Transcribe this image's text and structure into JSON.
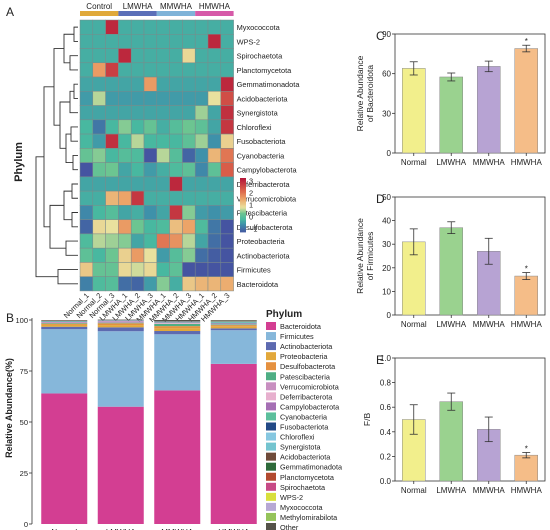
{
  "panels": {
    "A": {
      "letter": "A",
      "groups": [
        "Control",
        "LMWHA",
        "MMWHA",
        "HMWHA"
      ],
      "group_colors": [
        "#e0a93a",
        "#5b6fb8",
        "#7fb3d8",
        "#d65aa8"
      ],
      "rows_label": "Phylum",
      "rows": [
        "Myxococcota",
        "WPS-2",
        "Spirochaetota",
        "Planctomycetota",
        "Gemmatimonadota",
        "Acidobacteriota",
        "Synergistota",
        "Chloroflexi",
        "Fusobacteriota",
        "Cyanobacteria",
        "Campylobacterota",
        "Deferribacterota",
        "Verrucomicrobiota",
        "Patescibacteria",
        "Desulfobacterota",
        "Proteobacteria",
        "Actinobacteriota",
        "Firmicutes",
        "Bacteroidota"
      ],
      "samples": [
        "Normal_1",
        "Normal_2",
        "Normal_3",
        "LMWHA_1",
        "LMWHA_2",
        "LMWHA_3",
        "MMWHA_1",
        "MMWHA_2",
        "MMWHA_3",
        "HMWHA_1",
        "HMWHA_2",
        "HMWHA_3"
      ],
      "values": [
        [
          -0.3,
          -0.3,
          3.0,
          -0.3,
          -0.3,
          -0.3,
          -0.3,
          -0.3,
          -0.3,
          -0.3,
          -0.3,
          -0.3
        ],
        [
          -0.3,
          -0.3,
          -0.3,
          -0.3,
          -0.3,
          -0.3,
          -0.3,
          -0.3,
          -0.3,
          -0.3,
          3.0,
          -0.3
        ],
        [
          -0.3,
          -0.3,
          -0.3,
          3.0,
          -0.3,
          -0.3,
          -0.3,
          -0.3,
          0.9,
          -0.3,
          -0.3,
          -0.3
        ],
        [
          -0.3,
          1.6,
          2.7,
          -0.3,
          -0.3,
          -0.3,
          -0.3,
          -0.3,
          -0.3,
          -0.3,
          -0.3,
          -0.3
        ],
        [
          -0.4,
          -0.4,
          -0.4,
          -0.4,
          -0.4,
          1.6,
          -0.4,
          -0.4,
          -0.4,
          -0.4,
          -0.4,
          3.0
        ],
        [
          -0.5,
          0.6,
          -0.5,
          -0.5,
          -0.5,
          -0.5,
          -0.5,
          -0.5,
          -0.5,
          -0.5,
          0.8,
          2.5
        ],
        [
          -0.4,
          -0.4,
          -0.4,
          -0.4,
          -0.4,
          -0.4,
          -0.4,
          -0.4,
          -0.4,
          0.5,
          -0.4,
          2.9
        ],
        [
          -0.2,
          -0.9,
          -0.2,
          0.4,
          -0.2,
          0.2,
          -0.3,
          0.0,
          0.3,
          0.1,
          -0.4,
          2.8
        ],
        [
          -0.2,
          -0.5,
          2.9,
          -0.2,
          0.6,
          -0.2,
          -0.2,
          -0.2,
          0.1,
          0.5,
          -0.6,
          1.0
        ],
        [
          0.2,
          0.4,
          -0.2,
          0.0,
          -0.1,
          -1.6,
          0.6,
          0.0,
          -1.1,
          -0.6,
          1.3,
          2.0
        ],
        [
          -1.3,
          0.2,
          0.3,
          -0.4,
          -0.2,
          -0.5,
          -0.3,
          -0.1,
          0.1,
          -0.7,
          0.1,
          2.3
        ],
        [
          -0.4,
          -0.4,
          -0.4,
          -0.4,
          -0.4,
          -0.4,
          -0.4,
          3.0,
          -0.4,
          -0.4,
          -0.4,
          -0.4
        ],
        [
          -0.3,
          -0.3,
          1.3,
          1.5,
          2.8,
          -0.3,
          -0.3,
          -0.3,
          -0.3,
          -0.3,
          -0.3,
          -0.3
        ],
        [
          -0.7,
          -0.2,
          0.0,
          -0.4,
          -0.3,
          -0.6,
          -0.4,
          2.8,
          0.4,
          -0.5,
          -0.6,
          -0.5
        ],
        [
          -1.1,
          0.9,
          0.8,
          1.6,
          0.3,
          -0.2,
          -0.1,
          1.2,
          1.5,
          -0.1,
          -0.9,
          -1.3
        ],
        [
          -0.1,
          0.6,
          0.5,
          0.4,
          -0.4,
          -0.2,
          2.0,
          1.7,
          0.6,
          -0.4,
          -1.0,
          -1.4
        ],
        [
          0.1,
          -0.2,
          0.3,
          1.0,
          1.6,
          0.8,
          -0.5,
          0.0,
          0.4,
          -1.0,
          -1.2,
          -1.3
        ],
        [
          1.1,
          0.2,
          0.2,
          0.9,
          0.7,
          0.9,
          -0.2,
          0.1,
          -1.5,
          -1.5,
          -1.6,
          -1.6
        ],
        [
          -0.8,
          -0.1,
          0.0,
          -1.0,
          -1.1,
          -0.5,
          0.4,
          -0.3,
          1.1,
          1.3,
          1.3,
          1.4
        ]
      ],
      "color_scale": {
        "min": -1.3,
        "max": 3.2,
        "ticks": [
          3,
          2,
          1,
          0,
          -1
        ]
      }
    },
    "B": {
      "letter": "B",
      "ylabel": "Relative Abundance(%)",
      "yticks": [
        0,
        25,
        50,
        75,
        100
      ],
      "legend_title": "Phylum",
      "categories": [
        "Normal",
        "LMWHA",
        "MMWHA",
        "HMWHA"
      ],
      "series": [
        {
          "name": "Bacteroidota",
          "color": "#d33e92",
          "values": [
            64,
            57.5,
            65.5,
            78.5
          ]
        },
        {
          "name": "Firmicutes",
          "color": "#86b7da",
          "values": [
            31.5,
            37,
            27.5,
            16.5
          ]
        },
        {
          "name": "Actinobacteriota",
          "color": "#5d6ab0",
          "values": [
            1.2,
            1.9,
            1.6,
            0.9
          ]
        },
        {
          "name": "Proteobacteria",
          "color": "#e2a83b",
          "values": [
            0.9,
            1.1,
            1.3,
            1.0
          ]
        },
        {
          "name": "Desulfobacterota",
          "color": "#e5913f",
          "values": [
            0.6,
            0.9,
            1.1,
            0.6
          ]
        },
        {
          "name": "Patescibacteria",
          "color": "#4fae84",
          "values": [
            0.3,
            0.3,
            1.1,
            0.3
          ]
        },
        {
          "name": "Verrucomicrobiota",
          "color": "#c88fc0",
          "values": [
            0.2,
            0.5,
            0.1,
            0.1
          ]
        },
        {
          "name": "Deferribacterota",
          "color": "#e7b0ce",
          "values": [
            0.1,
            0.1,
            0.4,
            0.1
          ]
        },
        {
          "name": "Campylobacterota",
          "color": "#a56fb4",
          "values": [
            0.3,
            0.2,
            0.2,
            0.4
          ]
        },
        {
          "name": "Cyanobacteria",
          "color": "#5cbf9c",
          "values": [
            0.3,
            0.2,
            0.2,
            0.4
          ]
        },
        {
          "name": "Fusobacteriota",
          "color": "#234a86",
          "values": [
            0.1,
            0.1,
            0.1,
            0.1
          ]
        },
        {
          "name": "Chloroflexi",
          "color": "#86c7e0",
          "values": [
            0.1,
            0.1,
            0.1,
            0.2
          ]
        },
        {
          "name": "Synergistota",
          "color": "#74c4cf",
          "values": [
            0.0,
            0.0,
            0.0,
            0.1
          ]
        },
        {
          "name": "Acidobacteriota",
          "color": "#6f4b3a",
          "values": [
            0.1,
            0.0,
            0.0,
            0.2
          ]
        },
        {
          "name": "Gemmatimonadota",
          "color": "#2f6a3a",
          "values": [
            0.0,
            0.0,
            0.0,
            0.1
          ]
        },
        {
          "name": "Planctomycetota",
          "color": "#b24a2f",
          "values": [
            0.1,
            0.0,
            0.0,
            0.0
          ]
        },
        {
          "name": "Spirochaetota",
          "color": "#c74a86",
          "values": [
            0.0,
            0.1,
            0.0,
            0.0
          ]
        },
        {
          "name": "WPS-2",
          "color": "#d8df3c",
          "values": [
            0.0,
            0.0,
            0.0,
            0.1
          ]
        },
        {
          "name": "Myxococcota",
          "color": "#b7a8d4",
          "values": [
            0.0,
            0.0,
            0.0,
            0.0
          ]
        },
        {
          "name": "Methylomirabilota",
          "color": "#95c35a",
          "values": [
            0.0,
            0.0,
            0.0,
            0.0
          ]
        },
        {
          "name": "Other",
          "color": "#55534a",
          "values": [
            0.2,
            0.2,
            0.2,
            0.2
          ]
        }
      ]
    },
    "C": {
      "letter": "C",
      "ylabel_line1": "Relative Abundance",
      "ylabel_line2": "of Bacteroidota",
      "categories": [
        "Normal",
        "LMWHA",
        "MMWHA",
        "HMWHA"
      ],
      "values": [
        64,
        57.5,
        65.5,
        79
      ],
      "errors": [
        5,
        3,
        4,
        2.5
      ],
      "ylim": [
        0,
        90
      ],
      "yticks": [
        0,
        30,
        60,
        90
      ],
      "significance": [
        "",
        "",
        "",
        "*"
      ]
    },
    "D": {
      "letter": "D",
      "ylabel_line1": "Relative Abundance",
      "ylabel_line2": "of Firmicutes",
      "categories": [
        "Normal",
        "LMWHA",
        "MMWHA",
        "HMWHA"
      ],
      "values": [
        31,
        37,
        27,
        16.5
      ],
      "errors": [
        5.5,
        2.5,
        5.5,
        1.5
      ],
      "ylim": [
        0,
        50
      ],
      "yticks": [
        0,
        10,
        20,
        30,
        40,
        50
      ],
      "significance": [
        "",
        "",
        "",
        "*"
      ]
    },
    "E": {
      "letter": "E",
      "ylabel_line1": "F/B",
      "ylabel_line2": "",
      "categories": [
        "Normal",
        "LMWHA",
        "MMWHA",
        "HMWHA"
      ],
      "values": [
        0.5,
        0.645,
        0.42,
        0.21
      ],
      "errors": [
        0.12,
        0.07,
        0.1,
        0.022
      ],
      "ylim": [
        0,
        1.0
      ],
      "yticks": [
        0.0,
        0.2,
        0.4,
        0.6,
        0.8,
        1.0
      ],
      "significance": [
        "",
        "",
        "",
        "*"
      ]
    }
  },
  "bar_colors": [
    "#f2ef8c",
    "#9ad28f",
    "#b7a3d3",
    "#f5bd88"
  ]
}
